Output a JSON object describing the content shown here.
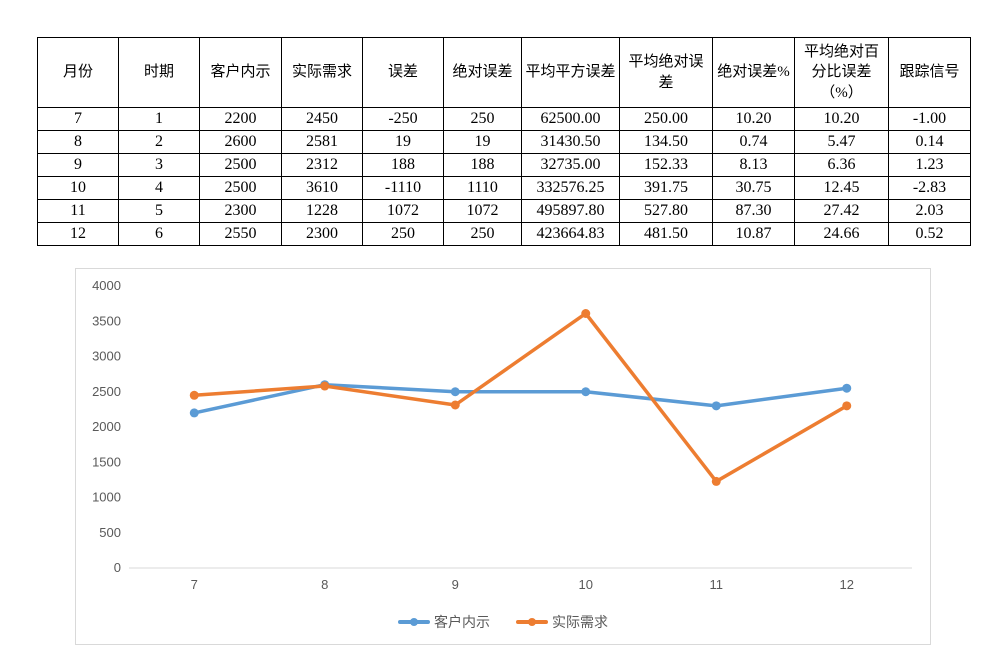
{
  "table": {
    "headers": [
      "月份",
      "时期",
      "客户内示",
      "实际需求",
      "误差",
      "绝对误差",
      "平均平方误差",
      "平均绝对误差",
      "绝对误差%",
      "平均绝对百分比误差（%）",
      "跟踪信号"
    ],
    "rows": [
      [
        "7",
        "1",
        "2200",
        "2450",
        "-250",
        "250",
        "62500.00",
        "250.00",
        "10.20",
        "10.20",
        "-1.00"
      ],
      [
        "8",
        "2",
        "2600",
        "2581",
        "19",
        "19",
        "31430.50",
        "134.50",
        "0.74",
        "5.47",
        "0.14"
      ],
      [
        "9",
        "3",
        "2500",
        "2312",
        "188",
        "188",
        "32735.00",
        "152.33",
        "8.13",
        "6.36",
        "1.23"
      ],
      [
        "10",
        "4",
        "2500",
        "3610",
        "-1110",
        "1110",
        "332576.25",
        "391.75",
        "30.75",
        "12.45",
        "-2.83"
      ],
      [
        "11",
        "5",
        "2300",
        "1228",
        "1072",
        "1072",
        "495897.80",
        "527.80",
        "87.30",
        "27.42",
        "2.03"
      ],
      [
        "12",
        "6",
        "2550",
        "2300",
        "250",
        "250",
        "423664.83",
        "481.50",
        "10.87",
        "24.66",
        "0.52"
      ]
    ]
  },
  "chart_data": {
    "type": "line",
    "categories": [
      "7",
      "8",
      "9",
      "10",
      "11",
      "12"
    ],
    "series": [
      {
        "name": "客户内示",
        "color": "#5B9BD5",
        "values": [
          2200,
          2600,
          2500,
          2500,
          2300,
          2550
        ]
      },
      {
        "name": "实际需求",
        "color": "#ED7D31",
        "values": [
          2450,
          2581,
          2312,
          3610,
          1228,
          2300
        ]
      }
    ],
    "title": "",
    "xlabel": "",
    "ylabel": "",
    "ylim": [
      0,
      4000
    ],
    "ytick_step": 500,
    "grid": false,
    "legend_position": "bottom",
    "axis_color": "#d9d9d9",
    "label_color": "#595959",
    "marker": "circle"
  }
}
